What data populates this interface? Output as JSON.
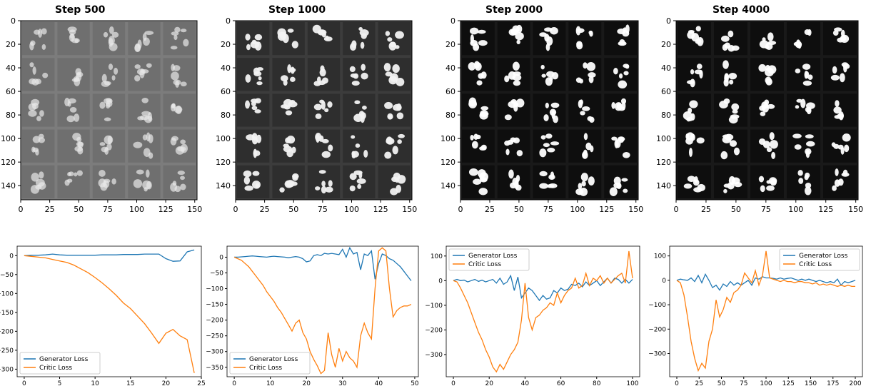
{
  "colors": {
    "generator": "#1f77b4",
    "critic": "#ff7f0e"
  },
  "grids": [
    {
      "title": "Step 500",
      "xticks": [
        "0",
        "25",
        "50",
        "75",
        "100",
        "125",
        "150"
      ],
      "yticks": [
        "0",
        "20",
        "40",
        "60",
        "80",
        "100",
        "120",
        "140"
      ],
      "bg": "#7c7c7c",
      "cell": "#6f6f6f",
      "fg": "#e8e8e8"
    },
    {
      "title": "Step 1000",
      "xticks": [
        "0",
        "25",
        "50",
        "75",
        "100",
        "125",
        "150"
      ],
      "yticks": [
        "0",
        "20",
        "40",
        "60",
        "80",
        "100",
        "120",
        "140"
      ],
      "bg": "#3c3c3c",
      "cell": "#2e2e2e",
      "fg": "#f2f2f2"
    },
    {
      "title": "Step 2000",
      "xticks": [
        "0",
        "25",
        "50",
        "75",
        "100",
        "125",
        "150"
      ],
      "yticks": [
        "0",
        "20",
        "40",
        "60",
        "80",
        "100",
        "120",
        "140"
      ],
      "bg": "#191919",
      "cell": "#0e0e0e",
      "fg": "#ffffff"
    },
    {
      "title": "Step 4000",
      "xticks": [
        "0",
        "25",
        "50",
        "75",
        "100",
        "125",
        "150"
      ],
      "yticks": [
        "0",
        "20",
        "40",
        "60",
        "80",
        "100",
        "120",
        "140"
      ],
      "bg": "#191919",
      "cell": "#0e0e0e",
      "fg": "#ffffff"
    }
  ],
  "chart_data": [
    {
      "type": "line",
      "x": [
        0,
        1,
        2,
        3,
        4,
        5,
        6,
        7,
        8,
        9,
        10,
        11,
        12,
        13,
        14,
        15,
        16,
        17,
        18,
        19,
        20,
        21,
        22,
        23,
        24
      ],
      "series": [
        {
          "name": "Generator Loss",
          "values": [
            0,
            1,
            1,
            2,
            4,
            2,
            1,
            1,
            1,
            1,
            1,
            2,
            2,
            2,
            3,
            3,
            3,
            4,
            4,
            4,
            -8,
            -15,
            -14,
            10,
            15
          ]
        },
        {
          "name": "Critic Loss",
          "values": [
            0,
            -2,
            -4,
            -6,
            -10,
            -14,
            -18,
            -25,
            -35,
            -45,
            -58,
            -72,
            -88,
            -105,
            -125,
            -140,
            -160,
            -180,
            -205,
            -232,
            -205,
            -195,
            -212,
            -222,
            -310
          ]
        }
      ],
      "xlim": [
        -1,
        25
      ],
      "ylim": [
        -320,
        25
      ],
      "xticks": [
        0,
        5,
        10,
        15,
        20,
        25
      ],
      "yticks": [
        0,
        -50,
        -100,
        -150,
        -200,
        -250,
        -300
      ],
      "ytick_labels": [
        "0",
        "−50",
        "−100",
        "−150",
        "−200",
        "−250",
        "−300"
      ],
      "legend": "lower-left"
    },
    {
      "type": "line",
      "x": [
        0,
        1,
        2,
        3,
        4,
        5,
        6,
        7,
        8,
        9,
        10,
        11,
        12,
        13,
        14,
        15,
        16,
        17,
        18,
        19,
        20,
        21,
        22,
        23,
        24,
        25,
        26,
        27,
        28,
        29,
        30,
        31,
        32,
        33,
        34,
        35,
        36,
        37,
        38,
        39,
        40,
        41,
        42,
        43,
        44,
        45,
        46,
        47,
        48,
        49
      ],
      "series": [
        {
          "name": "Generator Loss",
          "values": [
            0,
            0,
            1,
            2,
            3,
            4,
            3,
            2,
            1,
            0,
            2,
            3,
            2,
            1,
            0,
            -2,
            0,
            2,
            0,
            -5,
            -15,
            -12,
            5,
            8,
            5,
            12,
            10,
            12,
            10,
            8,
            25,
            0,
            30,
            10,
            15,
            -40,
            10,
            5,
            20,
            -70,
            -20,
            10,
            5,
            -5,
            -10,
            -20,
            -30,
            -45,
            -60,
            -75
          ]
        },
        {
          "name": "Critic Loss",
          "values": [
            0,
            -5,
            -10,
            -20,
            -30,
            -45,
            -60,
            -75,
            -90,
            -110,
            -125,
            -140,
            -160,
            -175,
            -195,
            -215,
            -235,
            -210,
            -200,
            -240,
            -260,
            -300,
            -325,
            -345,
            -370,
            -360,
            -240,
            -310,
            -350,
            -290,
            -330,
            -300,
            -320,
            -330,
            -350,
            -250,
            -210,
            -240,
            -260,
            -100,
            20,
            30,
            20,
            -100,
            -190,
            -170,
            -160,
            -155,
            -155,
            -150
          ]
        }
      ],
      "xlim": [
        -2,
        51
      ],
      "ylim": [
        -380,
        35
      ],
      "xticks": [
        0,
        10,
        20,
        30,
        40,
        50
      ],
      "yticks": [
        0,
        -50,
        -100,
        -150,
        -200,
        -250,
        -300,
        -350
      ],
      "ytick_labels": [
        "0",
        "−50",
        "−100",
        "−150",
        "−200",
        "−250",
        "−300",
        "−350"
      ],
      "legend": "lower-left"
    },
    {
      "type": "line",
      "x": [
        0,
        2,
        4,
        6,
        8,
        10,
        12,
        14,
        16,
        18,
        20,
        22,
        24,
        26,
        28,
        30,
        32,
        34,
        36,
        38,
        40,
        42,
        44,
        46,
        48,
        50,
        52,
        54,
        56,
        58,
        60,
        62,
        64,
        66,
        68,
        70,
        72,
        74,
        76,
        78,
        80,
        82,
        84,
        86,
        88,
        90,
        92,
        94,
        96,
        98,
        100
      ],
      "series": [
        {
          "name": "Generator Loss",
          "values": [
            0,
            5,
            0,
            2,
            -5,
            0,
            5,
            -3,
            2,
            -5,
            0,
            5,
            -10,
            10,
            -15,
            -5,
            20,
            -40,
            15,
            -70,
            -50,
            -30,
            -40,
            -60,
            -80,
            -60,
            -75,
            -70,
            -40,
            -50,
            -30,
            -40,
            -35,
            -15,
            -20,
            -10,
            -25,
            -5,
            -20,
            -10,
            0,
            -20,
            -5,
            10,
            -10,
            10,
            5,
            -10,
            5,
            -10,
            5
          ]
        },
        {
          "name": "Critic Loss",
          "values": [
            0,
            -5,
            -30,
            -60,
            -90,
            -130,
            -170,
            -210,
            -240,
            -280,
            -310,
            -350,
            -370,
            -340,
            -360,
            -330,
            -300,
            -280,
            -250,
            -160,
            -10,
            -150,
            -200,
            -150,
            -140,
            -120,
            -110,
            -90,
            -100,
            -50,
            -90,
            -60,
            -40,
            -30,
            10,
            -30,
            -20,
            30,
            -20,
            10,
            0,
            20,
            -10,
            10,
            -10,
            5,
            20,
            30,
            -10,
            120,
            10
          ]
        }
      ],
      "xlim": [
        -4,
        104
      ],
      "ylim": [
        -390,
        140
      ],
      "xticks": [
        0,
        20,
        40,
        60,
        80,
        100
      ],
      "yticks": [
        100,
        0,
        -100,
        -200,
        -300
      ],
      "ytick_labels": [
        "100",
        "0",
        "−100",
        "−200",
        "−300"
      ],
      "legend": "upper-left"
    },
    {
      "type": "line",
      "x": [
        0,
        4,
        8,
        12,
        16,
        20,
        24,
        28,
        32,
        36,
        40,
        44,
        48,
        52,
        56,
        60,
        64,
        68,
        72,
        76,
        80,
        84,
        88,
        92,
        96,
        100,
        104,
        108,
        112,
        116,
        120,
        124,
        128,
        132,
        136,
        140,
        144,
        148,
        152,
        156,
        160,
        164,
        168,
        172,
        176,
        180,
        184,
        188,
        192,
        196,
        200
      ],
      "series": [
        {
          "name": "Generator Loss",
          "values": [
            0,
            5,
            2,
            0,
            10,
            -5,
            20,
            -10,
            25,
            0,
            -30,
            -20,
            -40,
            -15,
            -25,
            -5,
            -20,
            -10,
            -20,
            -10,
            0,
            -20,
            10,
            5,
            15,
            10,
            10,
            8,
            5,
            10,
            5,
            8,
            10,
            5,
            0,
            5,
            0,
            5,
            0,
            -5,
            0,
            -5,
            -10,
            -5,
            -10,
            5,
            -20,
            -5,
            -10,
            -5,
            0
          ]
        },
        {
          "name": "Critic Loss",
          "values": [
            0,
            -10,
            -60,
            -150,
            -250,
            -320,
            -370,
            -340,
            -360,
            -250,
            -200,
            -80,
            -150,
            -120,
            -70,
            -90,
            -50,
            -40,
            -20,
            30,
            10,
            -10,
            40,
            -20,
            20,
            120,
            10,
            5,
            0,
            -5,
            0,
            -5,
            -5,
            -10,
            -5,
            -5,
            -10,
            -10,
            -15,
            -10,
            -20,
            -15,
            -20,
            -15,
            -20,
            -25,
            -20,
            -25,
            -20,
            -25,
            -25
          ]
        }
      ],
      "xlim": [
        -8,
        208
      ],
      "ylim": [
        -395,
        140
      ],
      "xticks": [
        0,
        25,
        50,
        75,
        100,
        125,
        150,
        175,
        200
      ],
      "yticks": [
        100,
        0,
        -100,
        -200,
        -300
      ],
      "ytick_labels": [
        "100",
        "0",
        "−100",
        "−200",
        "−300"
      ],
      "legend": "upper-right"
    }
  ]
}
